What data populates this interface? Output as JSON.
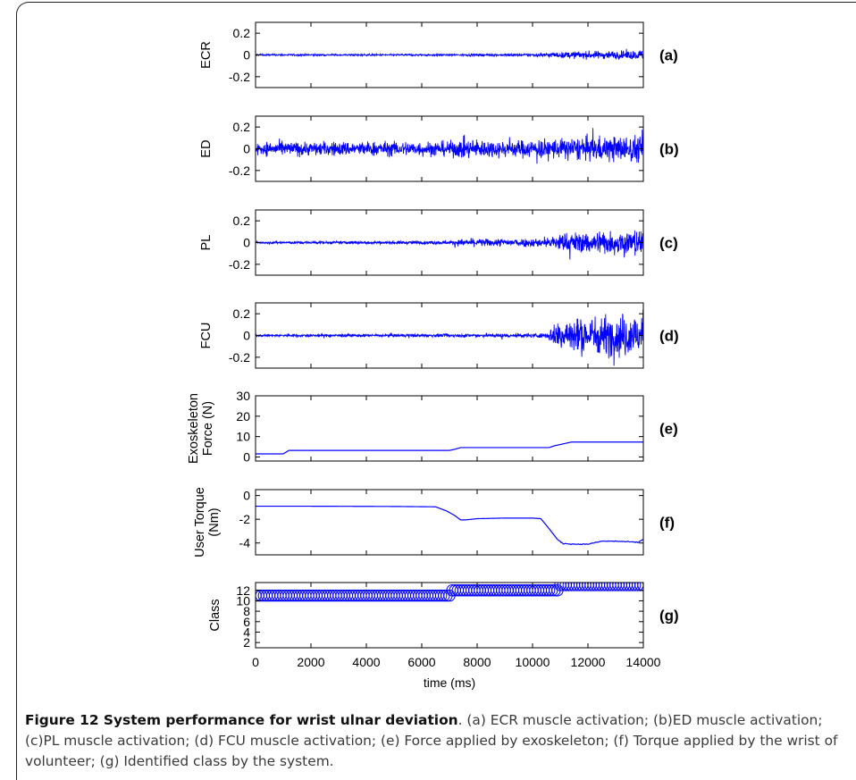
{
  "caption": {
    "title": "Figure 12 System performance for wrist ulnar deviation",
    "text": ". (a) ECR muscle activation; (b)ED muscle activation; (c)PL muscle activation; (d) FCU muscle activation; (e) Force applied by exoskeleton; (f) Torque applied by the wrist of volunteer; (g) Identified class by the system."
  },
  "chart_data": [
    {
      "type": "line",
      "panel": "(a)",
      "ylabel": [
        "ECR"
      ],
      "xlim": [
        0,
        14000
      ],
      "ylim": [
        -0.3,
        0.3
      ],
      "yticks": [
        "0.2",
        "0",
        "-0.2"
      ],
      "ytick_values": [
        0.2,
        0,
        -0.2
      ],
      "series": [
        {
          "color": "#0000ff",
          "signal": "emg",
          "amplitude_envelope": [
            [
              0,
              0.008
            ],
            [
              7000,
              0.008
            ],
            [
              10000,
              0.012
            ],
            [
              11500,
              0.03
            ],
            [
              14000,
              0.04
            ]
          ]
        }
      ]
    },
    {
      "type": "line",
      "panel": "(b)",
      "ylabel": [
        "ED"
      ],
      "xlim": [
        0,
        14000
      ],
      "ylim": [
        -0.3,
        0.3
      ],
      "yticks": [
        "0.2",
        "0",
        "-0.2"
      ],
      "ytick_values": [
        0.2,
        0,
        -0.2
      ],
      "series": [
        {
          "color": "#0000ff",
          "signal": "emg",
          "amplitude_envelope": [
            [
              0,
              0.06
            ],
            [
              7000,
              0.065
            ],
            [
              7500,
              0.09
            ],
            [
              9000,
              0.07
            ],
            [
              11500,
              0.1
            ],
            [
              14000,
              0.12
            ]
          ]
        }
      ]
    },
    {
      "type": "line",
      "panel": "(c)",
      "ylabel": [
        "PL"
      ],
      "xlim": [
        0,
        14000
      ],
      "ylim": [
        -0.3,
        0.3
      ],
      "yticks": [
        "0.2",
        "0",
        "-0.2"
      ],
      "ytick_values": [
        0.2,
        0,
        -0.2
      ],
      "series": [
        {
          "color": "#0000ff",
          "signal": "emg",
          "amplitude_envelope": [
            [
              0,
              0.01
            ],
            [
              7000,
              0.015
            ],
            [
              7500,
              0.03
            ],
            [
              10500,
              0.04
            ],
            [
              11000,
              0.08
            ],
            [
              14000,
              0.12
            ]
          ]
        }
      ]
    },
    {
      "type": "line",
      "panel": "(d)",
      "ylabel": [
        "FCU"
      ],
      "xlim": [
        0,
        14000
      ],
      "ylim": [
        -0.3,
        0.3
      ],
      "yticks": [
        "0.2",
        "0",
        "-0.2"
      ],
      "ytick_values": [
        0.2,
        0,
        -0.2
      ],
      "series": [
        {
          "color": "#0000ff",
          "signal": "emg",
          "amplitude_envelope": [
            [
              0,
              0.01
            ],
            [
              7000,
              0.015
            ],
            [
              10500,
              0.02
            ],
            [
              11000,
              0.15
            ],
            [
              14000,
              0.2
            ]
          ]
        }
      ]
    },
    {
      "type": "line",
      "panel": "(e)",
      "ylabel": [
        "Exoskeleton",
        "Force (N)"
      ],
      "xlim": [
        0,
        14000
      ],
      "ylim": [
        -2,
        30
      ],
      "yticks": [
        "30",
        "20",
        "10",
        "0"
      ],
      "ytick_values": [
        30,
        20,
        10,
        0
      ],
      "series": [
        {
          "color": "#0000ff",
          "x": [
            0,
            1000,
            1200,
            7000,
            7200,
            7400,
            10600,
            10800,
            11400,
            14000
          ],
          "y": [
            1.5,
            1.5,
            3.2,
            3.2,
            3.8,
            4.6,
            4.6,
            5.5,
            7.3,
            7.3
          ]
        }
      ]
    },
    {
      "type": "line",
      "panel": "(f)",
      "ylabel": [
        "User Torque",
        "(Nm)"
      ],
      "xlim": [
        0,
        14000
      ],
      "ylim": [
        -5,
        0.5
      ],
      "yticks": [
        "0",
        "-2",
        "-4"
      ],
      "ytick_values": [
        0,
        -2,
        -4
      ],
      "series": [
        {
          "color": "#0000ff",
          "x": [
            0,
            2000,
            5000,
            6500,
            6900,
            7200,
            7400,
            7600,
            8000,
            9000,
            10000,
            10300,
            10600,
            10900,
            11100,
            11500,
            12000,
            12500,
            13000,
            13500,
            13800,
            14000
          ],
          "y": [
            -0.9,
            -0.9,
            -0.92,
            -0.95,
            -1.3,
            -1.7,
            -2.05,
            -2.05,
            -1.95,
            -1.9,
            -1.9,
            -1.95,
            -2.8,
            -3.7,
            -4.05,
            -4.1,
            -4.1,
            -3.85,
            -3.85,
            -3.9,
            -3.95,
            -3.7
          ]
        }
      ]
    },
    {
      "type": "scatter",
      "panel": "(g)",
      "ylabel": [
        "Class"
      ],
      "xlabel": "time (ms)",
      "xticks": [
        "0",
        "2000",
        "4000",
        "6000",
        "8000",
        "10000",
        "12000",
        "14000"
      ],
      "xtick_values": [
        0,
        2000,
        4000,
        6000,
        8000,
        10000,
        12000,
        14000
      ],
      "xlim": [
        0,
        14000
      ],
      "ylim": [
        1,
        13.5
      ],
      "yticks": [
        "12",
        "10",
        "8",
        "6",
        "4",
        "2"
      ],
      "ytick_values": [
        12,
        10,
        8,
        6,
        4,
        2
      ],
      "series": [
        {
          "color": "#0000ff",
          "marker": "circle",
          "segments": [
            {
              "x_from": 0,
              "x_to": 7000,
              "class": 11
            },
            {
              "x_from": 7100,
              "x_to": 10900,
              "class": 12
            },
            {
              "x_from": 11000,
              "x_to": 14000,
              "class": 13
            }
          ],
          "sample_step": 100
        }
      ]
    }
  ]
}
